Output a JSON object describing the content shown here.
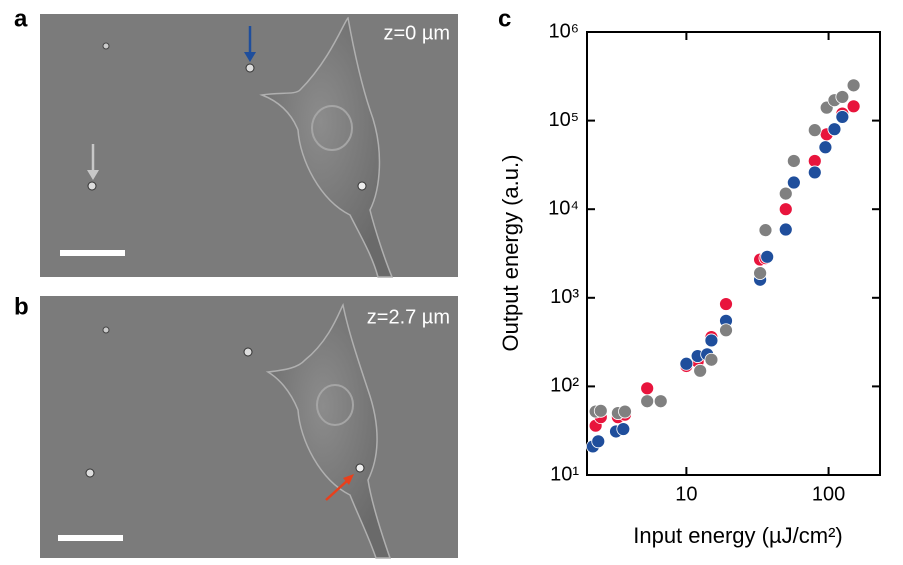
{
  "panels": {
    "a": {
      "label": "a",
      "caption": "z=0 µm"
    },
    "b": {
      "label": "b",
      "caption": "z=2.7 µm"
    }
  },
  "chart_data": {
    "type": "scatter",
    "panel_label": "c",
    "x_label": "Input energy (µJ/cm²)",
    "y_label": "Output energy (a.u.)",
    "log_x": true,
    "log_y": true,
    "xlim": [
      2,
      230
    ],
    "xticks": [
      10,
      100
    ],
    "ylim": [
      10,
      1000000
    ],
    "yticks": [
      {
        "value": 10,
        "label": "10¹"
      },
      {
        "value": 100,
        "label": "10²"
      },
      {
        "value": 1000,
        "label": "10³"
      },
      {
        "value": 10000,
        "label": "10⁴"
      },
      {
        "value": 100000,
        "label": "10⁵"
      },
      {
        "value": 1000000,
        "label": "10⁶"
      }
    ],
    "series": [
      {
        "color": "#e8143c",
        "x": [
          2.3,
          2.5,
          3.3,
          3.7,
          5.3,
          10,
          12,
          15,
          19,
          33,
          36,
          50,
          57,
          80,
          97,
          110,
          125,
          150
        ],
        "values": [
          36,
          45,
          45,
          48,
          95,
          170,
          190,
          360,
          850,
          2700,
          2800,
          10000,
          20000,
          35000,
          70000,
          80000,
          120000,
          145000
        ]
      },
      {
        "color": "#1f4e9c",
        "x": [
          2.2,
          2.4,
          3.2,
          3.6,
          10,
          12,
          14,
          15,
          19,
          33,
          37,
          50,
          57,
          80,
          95,
          110,
          125
        ],
        "values": [
          21,
          24,
          31,
          33,
          180,
          220,
          230,
          330,
          550,
          1600,
          2900,
          5900,
          20000,
          26000,
          50000,
          80000,
          110000
        ]
      },
      {
        "color": "#808080",
        "x": [
          2.3,
          2.5,
          3.3,
          3.7,
          5.3,
          6.6,
          12.5,
          15,
          19,
          33,
          36,
          50,
          57,
          80,
          97,
          110,
          125,
          150
        ],
        "values": [
          52,
          53,
          50,
          52,
          68,
          68,
          150,
          200,
          430,
          1900,
          5800,
          15000,
          35000,
          78000,
          140000,
          170000,
          185000,
          250000
        ]
      }
    ]
  }
}
